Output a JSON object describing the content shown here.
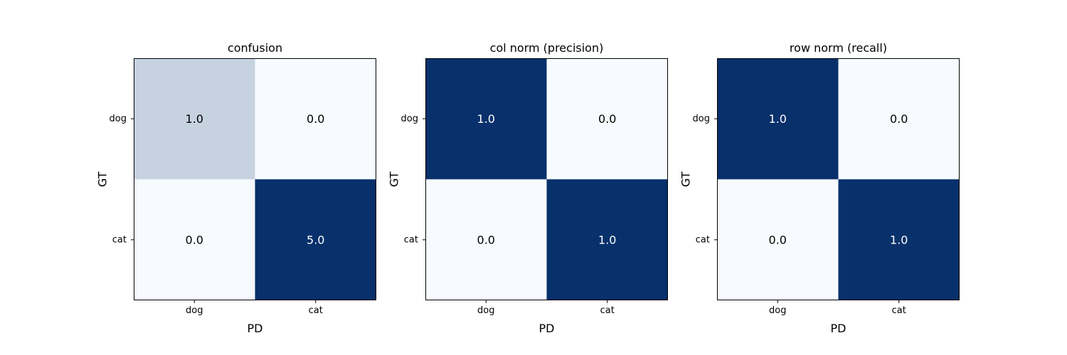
{
  "chart_data": [
    {
      "type": "heatmap",
      "title": "confusion",
      "xlabel": "PD",
      "ylabel": "GT",
      "x_categories": [
        "dog",
        "cat"
      ],
      "y_categories": [
        "dog",
        "cat"
      ],
      "values": [
        [
          1.0,
          0.0
        ],
        [
          0.0,
          5.0
        ]
      ],
      "value_labels": [
        [
          "1.0",
          "0.0"
        ],
        [
          "0.0",
          "5.0"
        ]
      ],
      "colormap": "Blues",
      "grid": false
    },
    {
      "type": "heatmap",
      "title": "col norm (precision)",
      "xlabel": "PD",
      "ylabel": "GT",
      "x_categories": [
        "dog",
        "cat"
      ],
      "y_categories": [
        "dog",
        "cat"
      ],
      "values": [
        [
          1.0,
          0.0
        ],
        [
          0.0,
          1.0
        ]
      ],
      "value_labels": [
        [
          "1.0",
          "0.0"
        ],
        [
          "0.0",
          "1.0"
        ]
      ],
      "colormap": "Blues",
      "grid": false
    },
    {
      "type": "heatmap",
      "title": "row norm (recall)",
      "xlabel": "PD",
      "ylabel": "GT",
      "x_categories": [
        "dog",
        "cat"
      ],
      "y_categories": [
        "dog",
        "cat"
      ],
      "values": [
        [
          1.0,
          0.0
        ],
        [
          0.0,
          1.0
        ]
      ],
      "value_labels": [
        [
          "1.0",
          "0.0"
        ],
        [
          "0.0",
          "1.0"
        ]
      ],
      "colormap": "Blues",
      "grid": false
    }
  ],
  "colors": {
    "high": "#08306b",
    "low": "#f7fbff",
    "text_on_dark": "#ffffff",
    "text_on_light": "#000000"
  }
}
